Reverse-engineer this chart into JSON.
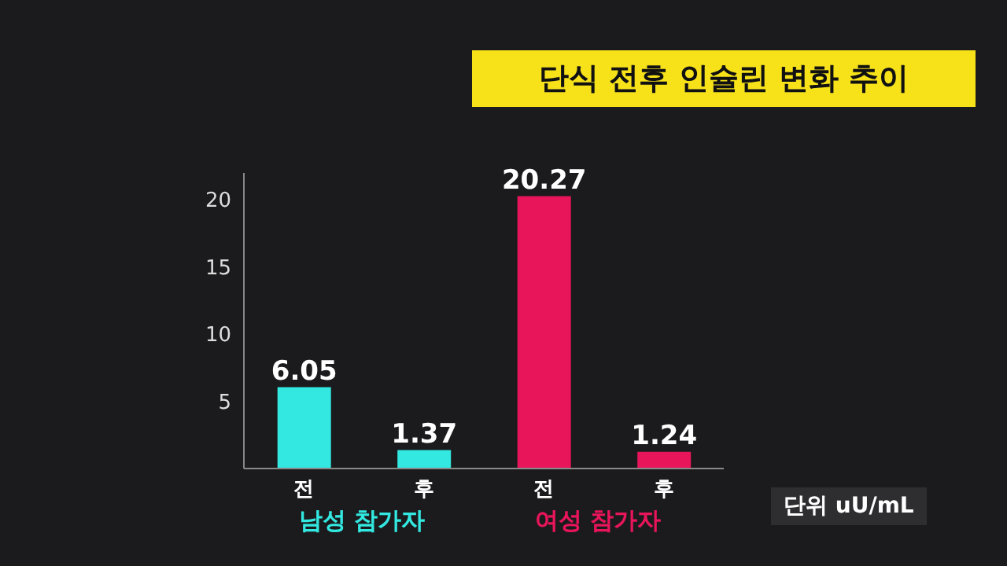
{
  "chart_data": {
    "type": "bar",
    "title": "단식 전후 인슐린 변화 추이",
    "categories": [
      "전",
      "후",
      "전",
      "후"
    ],
    "values": [
      6.05,
      1.37,
      20.27,
      1.24
    ],
    "colors": [
      "#33e8e0",
      "#33e8e0",
      "#e8155a",
      "#e8155a"
    ],
    "ylim": [
      0,
      22
    ],
    "yticks": [
      5,
      10,
      15,
      20
    ],
    "data_labels": true,
    "annotations": [
      "남성 참가자",
      "여성 참가자",
      "단위 uU/mL"
    ]
  }
}
